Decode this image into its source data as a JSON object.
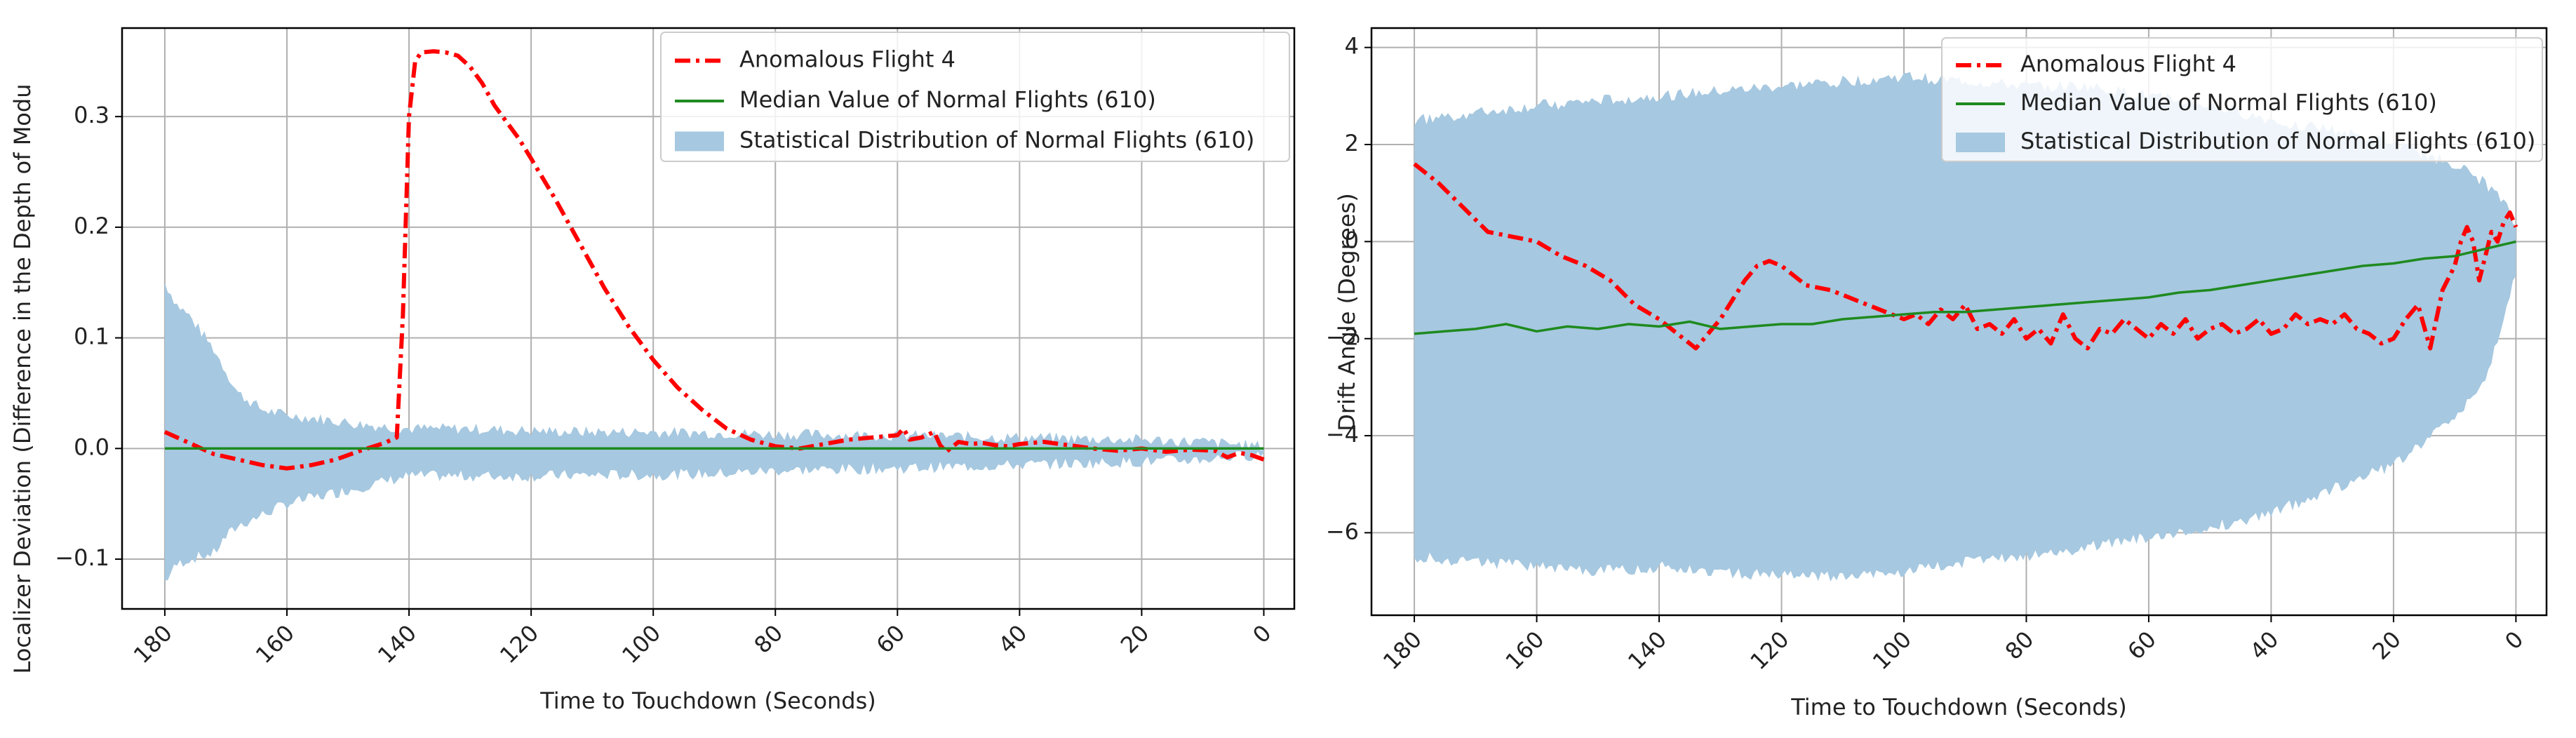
{
  "chart_data": [
    {
      "type": "line",
      "xlabel": "Time to Touchdown (Seconds)",
      "ylabel": "Localizer Deviation (Difference in the Depth of Modu",
      "xlim": [
        187,
        -5
      ],
      "ylim": [
        -0.145,
        0.38
      ],
      "xticks": [
        180,
        160,
        140,
        120,
        100,
        80,
        60,
        40,
        20,
        0
      ],
      "yticks": [
        -0.1,
        0.0,
        0.1,
        0.2,
        0.3
      ],
      "ytick_labels": [
        "−0.1",
        "0.0",
        "0.1",
        "0.2",
        "0.3"
      ],
      "grid": true,
      "legend_position": "top-right",
      "legend": [
        "Anomalous Flight 4",
        "Median Value of Normal Flights (610)",
        "Statistical Distribution of Normal Flights (610)"
      ],
      "series": [
        {
          "name": "Anomalous Flight 4",
          "style": "dashdot",
          "color": "#ff0000",
          "x": [
            180,
            176,
            172,
            168,
            164,
            160,
            156,
            152,
            148,
            144,
            142,
            141,
            140,
            139,
            138,
            136,
            134,
            132,
            130,
            128,
            126,
            124,
            122,
            120,
            116,
            112,
            108,
            104,
            100,
            96,
            92,
            88,
            84,
            80,
            76,
            72,
            68,
            64,
            60,
            59,
            58,
            56,
            54,
            53,
            52,
            50,
            48,
            46,
            44,
            42,
            40,
            38,
            36,
            32,
            28,
            24,
            20,
            16,
            12,
            8,
            6,
            4,
            2,
            0
          ],
          "y": [
            0.015,
            0.005,
            -0.005,
            -0.01,
            -0.015,
            -0.018,
            -0.015,
            -0.01,
            -0.002,
            0.005,
            0.01,
            0.12,
            0.3,
            0.35,
            0.358,
            0.359,
            0.358,
            0.355,
            0.345,
            0.33,
            0.31,
            0.295,
            0.28,
            0.262,
            0.225,
            0.185,
            0.145,
            0.11,
            0.08,
            0.055,
            0.035,
            0.018,
            0.008,
            0.002,
            0.0,
            0.004,
            0.008,
            0.01,
            0.012,
            0.018,
            0.008,
            0.01,
            0.015,
            0.003,
            -0.003,
            0.006,
            0.004,
            0.005,
            0.003,
            0.002,
            0.004,
            0.005,
            0.006,
            0.003,
            0.0,
            -0.002,
            0.0,
            -0.003,
            -0.001,
            -0.002,
            -0.008,
            -0.004,
            -0.006,
            -0.01
          ]
        },
        {
          "name": "Median Value of Normal Flights (610)",
          "style": "solid",
          "color": "#1f8a1f",
          "x": [
            180,
            0
          ],
          "y": [
            0.0,
            0.0
          ]
        }
      ],
      "band": {
        "name": "Statistical Distribution of Normal Flights (610)",
        "color": "#a6c8e0",
        "x": [
          180,
          178,
          176,
          172,
          170,
          168,
          164,
          160,
          156,
          152,
          148,
          144,
          140,
          130,
          120,
          110,
          100,
          90,
          80,
          60,
          40,
          20,
          10,
          0
        ],
        "upper": [
          0.15,
          0.13,
          0.12,
          0.09,
          0.07,
          0.05,
          0.035,
          0.03,
          0.028,
          0.025,
          0.022,
          0.02,
          0.018,
          0.018,
          0.016,
          0.015,
          0.015,
          0.014,
          0.013,
          0.012,
          0.01,
          0.008,
          0.006,
          0.002
        ],
        "lower": [
          -0.12,
          -0.105,
          -0.1,
          -0.095,
          -0.08,
          -0.07,
          -0.06,
          -0.05,
          -0.045,
          -0.04,
          -0.035,
          -0.03,
          -0.025,
          -0.025,
          -0.025,
          -0.024,
          -0.024,
          -0.023,
          -0.02,
          -0.018,
          -0.015,
          -0.012,
          -0.01,
          -0.005
        ]
      }
    },
    {
      "type": "line",
      "xlabel": "Time to Touchdown (Seconds)",
      "ylabel": "Drift Angle (Degrees)",
      "xlim": [
        187,
        -5
      ],
      "ylim": [
        -7.7,
        4.4
      ],
      "xticks": [
        180,
        160,
        140,
        120,
        100,
        80,
        60,
        40,
        20,
        0
      ],
      "yticks": [
        -6,
        -4,
        -2,
        0,
        2,
        4
      ],
      "ytick_labels": [
        "−6",
        "−4",
        "−2",
        "0",
        "2",
        "4"
      ],
      "grid": true,
      "legend_position": "top-right",
      "legend": [
        "Anomalous Flight 4",
        "Median Value of Normal Flights (610)",
        "Statistical Distribution of Normal Flights (610)"
      ],
      "series": [
        {
          "name": "Anomalous Flight 4",
          "style": "dashdot",
          "color": "#ff0000",
          "x": [
            180,
            176,
            172,
            168,
            164,
            160,
            156,
            152,
            148,
            144,
            140,
            136,
            134,
            132,
            130,
            128,
            126,
            124,
            122,
            120,
            118,
            116,
            112,
            108,
            104,
            100,
            98,
            96,
            94,
            92,
            90,
            88,
            86,
            84,
            82,
            80,
            78,
            76,
            74,
            72,
            70,
            68,
            66,
            64,
            62,
            60,
            58,
            56,
            54,
            52,
            50,
            48,
            46,
            44,
            42,
            40,
            38,
            36,
            34,
            32,
            30,
            28,
            26,
            24,
            22,
            20,
            18,
            16,
            14,
            12,
            10,
            9,
            8,
            7,
            6,
            5,
            4,
            3,
            2,
            1,
            0
          ],
          "y": [
            1.6,
            1.2,
            0.7,
            0.2,
            0.1,
            0.0,
            -0.3,
            -0.5,
            -0.8,
            -1.3,
            -1.6,
            -2.0,
            -2.2,
            -1.9,
            -1.6,
            -1.2,
            -0.8,
            -0.5,
            -0.4,
            -0.5,
            -0.7,
            -0.9,
            -1.0,
            -1.2,
            -1.4,
            -1.6,
            -1.5,
            -1.7,
            -1.4,
            -1.6,
            -1.3,
            -1.8,
            -1.7,
            -1.9,
            -1.6,
            -2.0,
            -1.8,
            -2.1,
            -1.5,
            -2.0,
            -2.2,
            -1.8,
            -1.9,
            -1.6,
            -1.8,
            -2.0,
            -1.7,
            -1.9,
            -1.6,
            -2.0,
            -1.8,
            -1.7,
            -1.9,
            -1.8,
            -1.6,
            -1.9,
            -1.8,
            -1.5,
            -1.7,
            -1.6,
            -1.7,
            -1.5,
            -1.8,
            -1.9,
            -2.1,
            -2.0,
            -1.6,
            -1.3,
            -2.2,
            -1.0,
            -0.5,
            0.0,
            0.3,
            0.0,
            -0.8,
            -0.3,
            0.2,
            0.0,
            0.4,
            0.6,
            0.3
          ]
        },
        {
          "name": "Median Value of Normal Flights (610)",
          "style": "solid",
          "color": "#1f8a1f",
          "x": [
            180,
            175,
            170,
            165,
            160,
            155,
            150,
            145,
            140,
            135,
            130,
            125,
            120,
            115,
            110,
            105,
            100,
            95,
            90,
            85,
            80,
            75,
            70,
            65,
            60,
            55,
            50,
            45,
            40,
            35,
            30,
            25,
            20,
            15,
            10,
            5,
            0
          ],
          "y": [
            -1.9,
            -1.85,
            -1.8,
            -1.7,
            -1.85,
            -1.75,
            -1.8,
            -1.7,
            -1.75,
            -1.65,
            -1.8,
            -1.75,
            -1.7,
            -1.7,
            -1.6,
            -1.55,
            -1.5,
            -1.45,
            -1.45,
            -1.4,
            -1.35,
            -1.3,
            -1.25,
            -1.2,
            -1.15,
            -1.05,
            -1.0,
            -0.9,
            -0.8,
            -0.7,
            -0.6,
            -0.5,
            -0.45,
            -0.35,
            -0.3,
            -0.15,
            0.0
          ]
        }
      ],
      "band": {
        "name": "Statistical Distribution of Normal Flights (610)",
        "color": "#a6c8e0",
        "x": [
          180,
          170,
          160,
          150,
          140,
          130,
          120,
          110,
          100,
          90,
          80,
          70,
          60,
          50,
          40,
          30,
          20,
          15,
          10,
          5,
          2,
          0
        ],
        "upper": [
          2.5,
          2.65,
          2.8,
          2.9,
          3.0,
          3.1,
          3.2,
          3.3,
          3.4,
          3.3,
          3.2,
          3.2,
          3.0,
          2.8,
          2.5,
          2.3,
          2.0,
          1.8,
          1.6,
          1.2,
          0.8,
          0.3
        ],
        "lower": [
          -6.5,
          -6.6,
          -6.7,
          -6.8,
          -6.7,
          -6.8,
          -6.9,
          -6.9,
          -6.8,
          -6.6,
          -6.5,
          -6.3,
          -6.1,
          -5.9,
          -5.6,
          -5.1,
          -4.6,
          -4.1,
          -3.6,
          -2.9,
          -1.6,
          -0.6
        ]
      }
    }
  ]
}
